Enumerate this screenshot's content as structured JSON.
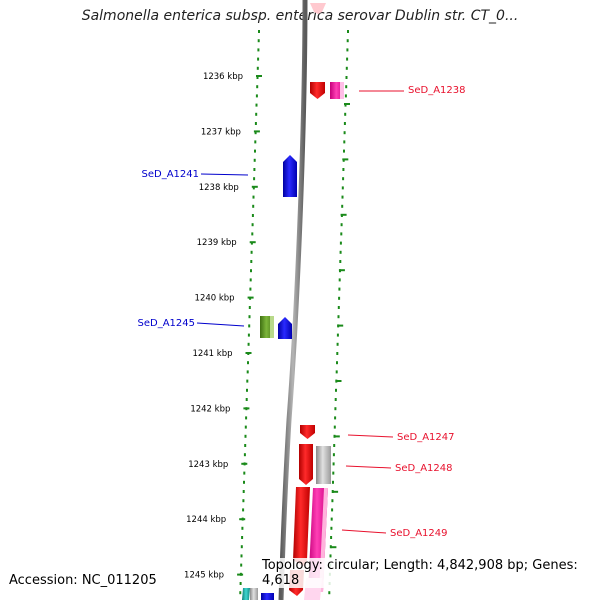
{
  "title": "Salmonella enterica subsp. enterica serovar Dublin str. CT_0...",
  "footer": {
    "accession": "Accession: NC_011205",
    "topology": "Topology: circular; Length: 4,842,908 bp; Genes: 4,618"
  },
  "ticks": [
    "1236 kbp",
    "1237 kbp",
    "1238 kbp",
    "1239 kbp",
    "1240 kbp",
    "1241 kbp",
    "1242 kbp",
    "1243 kbp",
    "1244 kbp",
    "1245 kbp"
  ],
  "genes": [
    {
      "label": "SeD_A1238",
      "strand": "right",
      "color": "#e8112d"
    },
    {
      "label": "SeD_A1241",
      "strand": "left",
      "color": "#0000cc"
    },
    {
      "label": "SeD_A1245",
      "strand": "left",
      "color": "#0000cc"
    },
    {
      "label": "SeD_A1247",
      "strand": "right",
      "color": "#e8112d"
    },
    {
      "label": "SeD_A1248",
      "strand": "right",
      "color": "#e8112d"
    },
    {
      "label": "SeD_A1249",
      "strand": "right",
      "color": "#e8112d"
    }
  ],
  "colors": {
    "tick_dots": "#1a8a1a",
    "backbone": "#808080",
    "red_feature": "#ff0000",
    "pink_feature": "#ff1aa3",
    "blue_feature": "#0000ff",
    "green_feature": "#5f9a1f",
    "grey_feature": "#bdbdbd",
    "teal_feature": "#20b2aa"
  }
}
